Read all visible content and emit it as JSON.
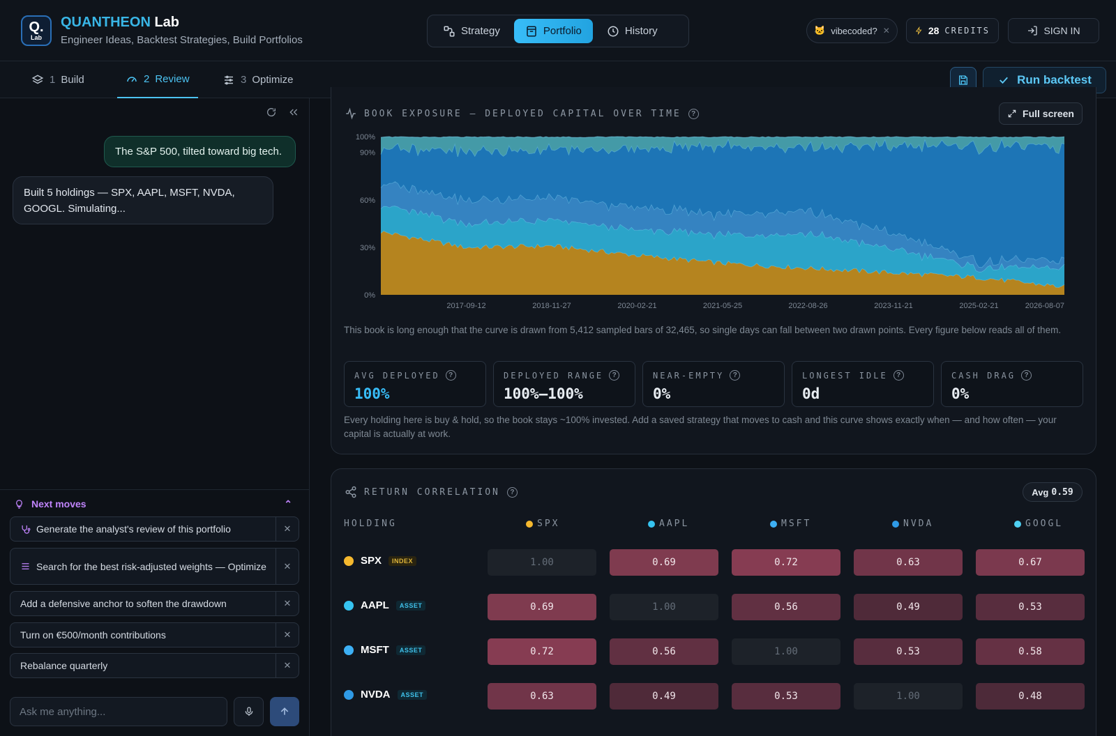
{
  "brand": {
    "logo_q": "Q.",
    "logo_lab": "Lab",
    "name_part1": "QUANTHEON",
    "name_part2": "Lab",
    "tagline": "Engineer Ideas, Backtest Strategies, Build Portfolios"
  },
  "nav": {
    "strategy": "Strategy",
    "portfolio": "Portfolio",
    "history": "History"
  },
  "header_right": {
    "vibe_label": "vibecoded?",
    "vibe_emoji": "🐱",
    "credits_num": "28",
    "credits_label": "CREDITS",
    "signin": "SIGN IN"
  },
  "steps": [
    {
      "num": "1",
      "label": "Build"
    },
    {
      "num": "2",
      "label": "Review"
    },
    {
      "num": "3",
      "label": "Optimize"
    }
  ],
  "run_backtest": "Run backtest",
  "chat": {
    "user_msg": "The S&P 500, tilted toward big tech.",
    "bot_msg": "Built 5 holdings — SPX, AAPL, MSFT, NVDA, GOOGL. Simulating...",
    "next_moves_title": "Next moves",
    "suggestions": [
      "Generate the analyst's review of this portfolio",
      "Search for the best risk-adjusted weights — Optimize",
      "Add a defensive anchor to soften the drawdown",
      "Turn on €500/month contributions",
      "Rebalance quarterly"
    ],
    "input_placeholder": "Ask me anything..."
  },
  "exposure": {
    "title": "BOOK EXPOSURE — DEPLOYED CAPITAL OVER TIME",
    "fullscreen": "Full screen",
    "note1": "This book is long enough that the curve is drawn from 5,412 sampled bars of 32,465, so single days can fall between two drawn points. Every figure below reads all of them.",
    "stats": [
      {
        "label": "AVG DEPLOYED",
        "value": "100%"
      },
      {
        "label": "DEPLOYED RANGE",
        "value": "100%–100%"
      },
      {
        "label": "NEAR-EMPTY",
        "value": "0%"
      },
      {
        "label": "LONGEST IDLE",
        "value": "0d"
      },
      {
        "label": "CASH DRAG",
        "value": "0%"
      }
    ],
    "note2": "Every holding here is buy & hold, so the book stays ~100% invested. Add a saved strategy that moves to cash and this curve shows exactly when — and how often — your capital is actually at work."
  },
  "chart_data": {
    "type": "area",
    "stacked": true,
    "y_tick_labels": [
      "100%",
      "90%",
      "60%",
      "30%",
      "0%"
    ],
    "x_tick_labels": [
      "2017-09-12",
      "2018-11-27",
      "2020-02-21",
      "2021-05-25",
      "2022-08-26",
      "2023-11-21",
      "2025-02-21",
      "2026-08-07"
    ],
    "ylim": [
      0,
      100
    ],
    "x": [
      "2016-09",
      "2017-09-12",
      "2018-11-27",
      "2020-02-21",
      "2021-05-25",
      "2022-08-26",
      "2023-11-21",
      "2025-02-21",
      "2026-08-07"
    ],
    "series": [
      {
        "name": "SPX",
        "color": "#c8901f",
        "values": [
          40,
          30,
          31,
          25,
          20,
          17,
          14,
          11,
          5
        ]
      },
      {
        "name": "AAPL",
        "color": "#2fb4dc",
        "values": [
          17,
          15,
          16,
          16,
          18,
          22,
          15,
          6,
          12
        ]
      },
      {
        "name": "MSFT",
        "color": "#3a8fd3",
        "values": [
          14,
          15,
          14,
          14,
          13,
          14,
          10,
          4,
          5
        ]
      },
      {
        "name": "NVDA",
        "color": "#1f7fc6",
        "values": [
          22,
          31,
          30,
          37,
          43,
          40,
          55,
          73,
          71
        ]
      },
      {
        "name": "GOOGL",
        "color": "#4aa9b6",
        "values": [
          7,
          9,
          9,
          8,
          6,
          7,
          6,
          6,
          7
        ]
      }
    ]
  },
  "correlation": {
    "title": "RETURN CORRELATION",
    "avg_label": "Avg",
    "avg_value": "0.59",
    "holding_header": "HOLDING",
    "columns": [
      {
        "name": "SPX",
        "color": "#f5b82e"
      },
      {
        "name": "AAPL",
        "color": "#36c3f0"
      },
      {
        "name": "MSFT",
        "color": "#3db0f5"
      },
      {
        "name": "NVDA",
        "color": "#2f9ae6"
      },
      {
        "name": "GOOGL",
        "color": "#4fd0f2"
      }
    ],
    "rows": [
      {
        "name": "SPX",
        "tag": "INDEX",
        "dot": "#f5b82e",
        "values": [
          "1.00",
          "0.69",
          "0.72",
          "0.63",
          "0.67"
        ]
      },
      {
        "name": "AAPL",
        "tag": "ASSET",
        "dot": "#36c3f0",
        "values": [
          "0.69",
          "1.00",
          "0.56",
          "0.49",
          "0.53"
        ]
      },
      {
        "name": "MSFT",
        "tag": "ASSET",
        "dot": "#3db0f5",
        "values": [
          "0.72",
          "0.56",
          "1.00",
          "0.53",
          "0.58"
        ]
      },
      {
        "name": "NVDA",
        "tag": "ASSET",
        "dot": "#2f9ae6",
        "values": [
          "0.63",
          "0.49",
          "0.53",
          "1.00",
          "0.48"
        ]
      }
    ]
  }
}
